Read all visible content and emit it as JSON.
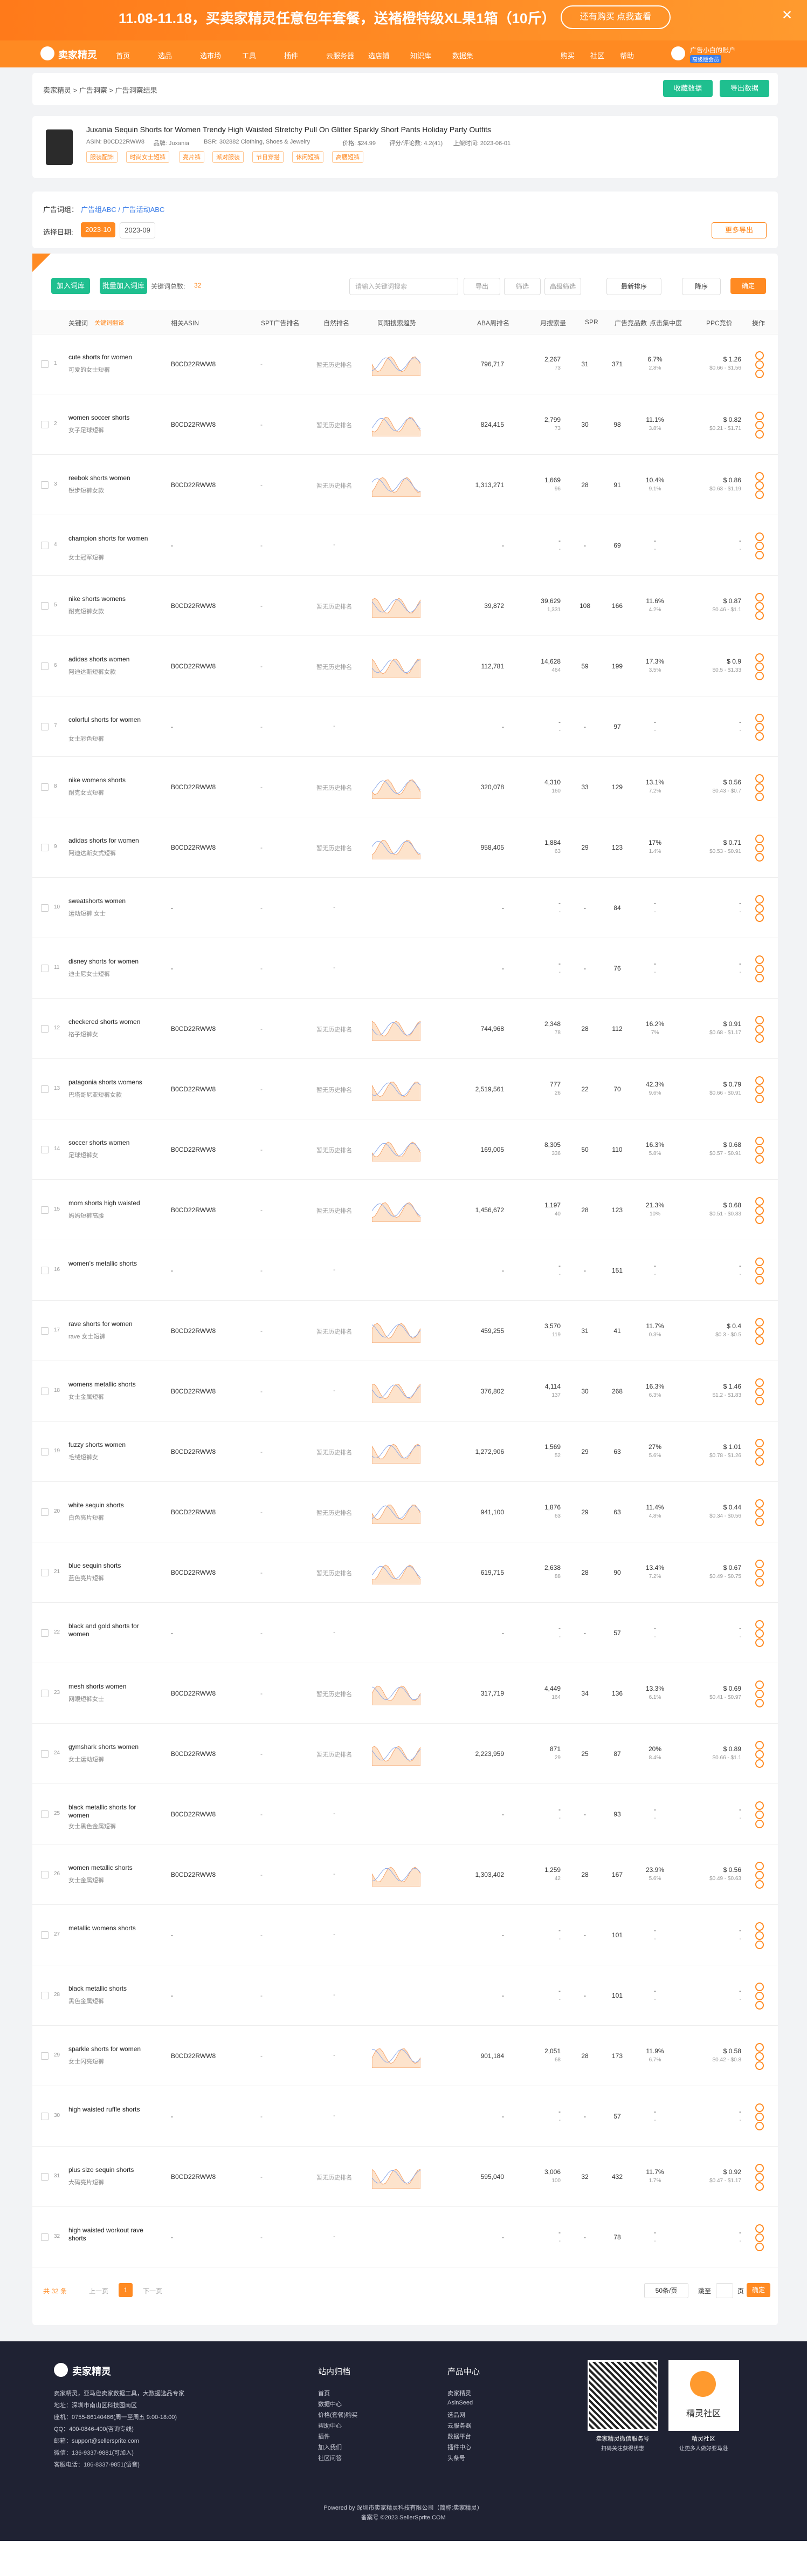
{
  "banner": {
    "text": "11.08-11.18，买卖家精灵任意包年套餐，送褚橙特级XL果1箱（10斤）",
    "button": "还有购买 点我查看"
  },
  "nav": {
    "logo": "卖家精灵",
    "items": [
      "首页",
      "选品",
      "选市场",
      "工具",
      "插件",
      "云服务器",
      "选店铺",
      "知识库",
      "数据集"
    ],
    "right": [
      "购买",
      "社区",
      "帮助"
    ],
    "user": "广告小白的账户",
    "badge": "高级版会员"
  },
  "breadcrumb": "卖家精灵 > 广告洞察 > 广告洞察结果",
  "actions": [
    "收藏数据",
    "导出数据"
  ],
  "product": {
    "title": "Juxania Sequin Shorts for Women Trendy High Waisted Stretchy Pull On Glitter Sparkly Short Pants Holiday Party Outfits",
    "meta": [
      "ASIN: B0CD22RWW8",
      "品牌: Juxania",
      "BSR: 302882 Clothing, Shoes & Jewelry",
      "价格: $24.99",
      "评分/评论数: 4.2(41)",
      "上架时间: 2023-06-01"
    ],
    "tags": [
      "服装配饰",
      "时尚女士短裤",
      "亮片裤",
      "派对服装",
      "节日穿搭",
      "休闲短裤",
      "高腰短裤"
    ]
  },
  "filter": {
    "label": "广告词组：",
    "groups": "广告组ABC / 广告活动ABC",
    "date_label": "选择日期:",
    "dates": [
      "2023-10",
      "2023-09"
    ],
    "export": "更多导出"
  },
  "toolbar": {
    "buttons": [
      "加入词库",
      "批量加入词库"
    ],
    "count_label": "关键词总数:",
    "count": 32,
    "search": "请输入关键词搜索",
    "tools": [
      "导出",
      "筛选",
      "高级筛选"
    ],
    "sort": "最新排序",
    "order": "降序",
    "confirm": "确定"
  },
  "table": {
    "headers": [
      "关键词",
      "相关ASIN",
      "SPT广告排名",
      "自然排名",
      "同期搜索趋势",
      "ABA周排名",
      "月搜索量",
      "SPR",
      "广告竞品数",
      "点击集中度",
      "PPC竞价",
      "操作"
    ],
    "translate": "关键词翻译",
    "rows": [
      [
        "1",
        "cute shorts for women",
        "可爱的女士短裤",
        "B0CD22RWW8",
        "-",
        "暂无历史排名",
        "796,717",
        "2,267",
        "73",
        "31",
        "371",
        "6.7%",
        "2.8%",
        "$ 1.26",
        "$0.66 - $1.56"
      ],
      [
        "2",
        "women soccer shorts",
        "女子足球短裤",
        "B0CD22RWW8",
        "-",
        "暂无历史排名",
        "824,415",
        "2,799",
        "73",
        "30",
        "98",
        "11.1%",
        "3.8%",
        "$ 0.82",
        "$0.21 - $1.71"
      ],
      [
        "3",
        "reebok shorts women",
        "锐步短裤女款",
        "B0CD22RWW8",
        "-",
        "暂无历史排名",
        "1,313,271",
        "1,669",
        "96",
        "28",
        "91",
        "10.4%",
        "9.1%",
        "$ 0.86",
        "$0.63 - $1.19"
      ],
      [
        "4",
        "champion shorts for women",
        "女士冠军短裤",
        "-",
        "-",
        "-",
        "-",
        "-",
        "-",
        "-",
        "69",
        "-",
        "-",
        "-",
        "-"
      ],
      [
        "5",
        "nike shorts womens",
        "耐克短裤女款",
        "B0CD22RWW8",
        "-",
        "暂无历史排名",
        "39,872",
        "39,629",
        "1,331",
        "108",
        "166",
        "11.6%",
        "4.2%",
        "$ 0.87",
        "$0.46 - $1.1"
      ],
      [
        "6",
        "adidas shorts women",
        "阿迪达斯短裤女款",
        "B0CD22RWW8",
        "-",
        "暂无历史排名",
        "112,781",
        "14,628",
        "464",
        "59",
        "199",
        "17.3%",
        "3.5%",
        "$ 0.9",
        "$0.5 - $1.33"
      ],
      [
        "7",
        "colorful shorts for women",
        "女士彩色短裤",
        "-",
        "-",
        "-",
        "-",
        "-",
        "-",
        "-",
        "97",
        "-",
        "-",
        "-",
        "-"
      ],
      [
        "8",
        "nike womens shorts",
        "耐克女式短裤",
        "B0CD22RWW8",
        "-",
        "暂无历史排名",
        "320,078",
        "4,310",
        "160",
        "33",
        "129",
        "13.1%",
        "7.2%",
        "$ 0.56",
        "$0.43 - $0.7"
      ],
      [
        "9",
        "adidas shorts for women",
        "阿迪达斯女式短裤",
        "B0CD22RWW8",
        "-",
        "暂无历史排名",
        "958,405",
        "1,884",
        "63",
        "29",
        "123",
        "17%",
        "1.4%",
        "$ 0.71",
        "$0.53 - $0.91"
      ],
      [
        "10",
        "sweatshorts women",
        "运动短裤 女士",
        "-",
        "-",
        "-",
        "-",
        "-",
        "-",
        "-",
        "84",
        "-",
        "-",
        "-",
        "-"
      ],
      [
        "11",
        "disney shorts for women",
        "迪士尼女士短裤",
        "-",
        "-",
        "-",
        "-",
        "-",
        "-",
        "-",
        "76",
        "-",
        "-",
        "-",
        "-"
      ],
      [
        "12",
        "checkered shorts women",
        "格子短裤女",
        "B0CD22RWW8",
        "-",
        "暂无历史排名",
        "744,968",
        "2,348",
        "78",
        "28",
        "112",
        "16.2%",
        "7%",
        "$ 0.91",
        "$0.68 - $1.17"
      ],
      [
        "13",
        "patagonia shorts womens",
        "巴塔哥尼亚短裤女款",
        "B0CD22RWW8",
        "-",
        "暂无历史排名",
        "2,519,561",
        "777",
        "26",
        "22",
        "70",
        "42.3%",
        "9.6%",
        "$ 0.79",
        "$0.66 - $0.91"
      ],
      [
        "14",
        "soccer shorts women",
        "足球短裤女",
        "B0CD22RWW8",
        "-",
        "暂无历史排名",
        "169,005",
        "8,305",
        "336",
        "50",
        "110",
        "16.3%",
        "5.8%",
        "$ 0.68",
        "$0.57 - $0.91"
      ],
      [
        "15",
        "mom shorts high waisted",
        "妈妈短裤高腰",
        "B0CD22RWW8",
        "-",
        "暂无历史排名",
        "1,456,672",
        "1,197",
        "40",
        "28",
        "123",
        "21.3%",
        "10%",
        "$ 0.68",
        "$0.51 - $0.83"
      ],
      [
        "16",
        "women's metallic shorts",
        null,
        "-",
        "-",
        "-",
        "-",
        "-",
        "-",
        "-",
        "151",
        "-",
        "-",
        "-",
        "-"
      ],
      [
        "17",
        "rave shorts for women",
        "rave 女士短裤",
        "B0CD22RWW8",
        "-",
        "暂无历史排名",
        "459,255",
        "3,570",
        "119",
        "31",
        "41",
        "11.7%",
        "0.3%",
        "$ 0.4",
        "$0.3 - $0.5"
      ],
      [
        "18",
        "womens metallic shorts",
        "女士金属短裤",
        "B0CD22RWW8",
        "-",
        "-",
        "376,802",
        "4,114",
        "137",
        "30",
        "268",
        "16.3%",
        "6.3%",
        "$ 1.46",
        "$1.2 - $1.83"
      ],
      [
        "19",
        "fuzzy shorts women",
        "毛绒短裤女",
        "B0CD22RWW8",
        "-",
        "暂无历史排名",
        "1,272,906",
        "1,569",
        "52",
        "29",
        "63",
        "27%",
        "5.6%",
        "$ 1.01",
        "$0.78 - $1.26"
      ],
      [
        "20",
        "white sequin shorts",
        "白色亮片短裤",
        "B0CD22RWW8",
        "-",
        "暂无历史排名",
        "941,100",
        "1,876",
        "63",
        "29",
        "63",
        "11.4%",
        "4.8%",
        "$ 0.44",
        "$0.34 - $0.56"
      ],
      [
        "21",
        "blue sequin shorts",
        "蓝色亮片短裤",
        "B0CD22RWW8",
        "-",
        "暂无历史排名",
        "619,715",
        "2,638",
        "88",
        "28",
        "90",
        "13.4%",
        "7.2%",
        "$ 0.67",
        "$0.49 - $0.75"
      ],
      [
        "22",
        "black and gold shorts for women",
        null,
        "-",
        "-",
        "-",
        "-",
        "-",
        "-",
        "-",
        "57",
        "-",
        "-",
        "-",
        "-"
      ],
      [
        "23",
        "mesh shorts women",
        "网眼短裤女士",
        "B0CD22RWW8",
        "-",
        "暂无历史排名",
        "317,719",
        "4,449",
        "164",
        "34",
        "136",
        "13.3%",
        "6.1%",
        "$ 0.69",
        "$0.41 - $0.97"
      ],
      [
        "24",
        "gymshark shorts women",
        "女士运动短裤",
        "B0CD22RWW8",
        "-",
        "暂无历史排名",
        "2,223,959",
        "871",
        "29",
        "25",
        "87",
        "20%",
        "8.4%",
        "$ 0.89",
        "$0.66 - $1.1"
      ],
      [
        "25",
        "black metallic shorts for women",
        "女士黑色金属短裤",
        "B0CD22RWW8",
        "-",
        "-",
        "-",
        "-",
        "-",
        "-",
        "93",
        "-",
        "-",
        "-",
        "-"
      ],
      [
        "26",
        "women metallic shorts",
        "女士金属短裤",
        "B0CD22RWW8",
        "-",
        "-",
        "1,303,402",
        "1,259",
        "42",
        "28",
        "167",
        "23.9%",
        "5.6%",
        "$ 0.56",
        "$0.49 - $0.63"
      ],
      [
        "27",
        "metallic womens shorts",
        null,
        "-",
        "-",
        "-",
        "-",
        "-",
        "-",
        "-",
        "101",
        "-",
        "-",
        "-",
        "-"
      ],
      [
        "28",
        "black metallic shorts",
        "黑色金属短裤",
        "-",
        "-",
        "-",
        "-",
        "-",
        "-",
        "-",
        "101",
        "-",
        "-",
        "-",
        "-"
      ],
      [
        "29",
        "sparkle shorts for women",
        "女士闪亮短裤",
        "B0CD22RWW8",
        "-",
        "-",
        "901,184",
        "2,051",
        "68",
        "28",
        "173",
        "11.9%",
        "6.7%",
        "$ 0.58",
        "$0.42 - $0.8"
      ],
      [
        "30",
        "high waisted ruffle shorts",
        null,
        "-",
        "-",
        "-",
        "-",
        "-",
        "-",
        "-",
        "57",
        "-",
        "-",
        "-",
        "-"
      ],
      [
        "31",
        "plus size sequin shorts",
        "大码亮片短裤",
        "B0CD22RWW8",
        "-",
        "暂无历史排名",
        "595,040",
        "3,006",
        "100",
        "32",
        "432",
        "11.7%",
        "1.7%",
        "$ 0.92",
        "$0.47 - $1.17"
      ],
      [
        "32",
        "high waisted workout rave shorts",
        null,
        "-",
        "-",
        "-",
        "-",
        "-",
        "-",
        "-",
        "78",
        "-",
        "-",
        "-",
        "-"
      ]
    ]
  },
  "pagination": {
    "total": "共 32 条",
    "prev": "上一页",
    "page": "1",
    "next": "下一页",
    "size": "50条/页",
    "goto": "跳至",
    "unit": "页",
    "go": "确定"
  },
  "footer": {
    "logo": "卖家精灵",
    "lines": [
      "卖家精灵，亚马逊卖家数据工具，大数据选品专家",
      "地址：深圳市南山区科技园南区",
      "座机：0755-86140466(周一至周五 9:00-18:00)",
      "QQ：400-0846-400(咨询专线)",
      "邮箱：support@sellersprite.com",
      "微信：136-9337-9881(可加入)",
      "客服电话：186-8337-9851(语音)"
    ],
    "columns": [
      {
        "title": "站内归档",
        "items": [
          "首页",
          "数据中心",
          "价格(套餐)购买",
          "帮助中心",
          "插件",
          "加入我们",
          "社区问答"
        ]
      },
      {
        "title": "产品中心",
        "items": [
          "卖家精灵",
          "AsinSeed",
          "选品网",
          "云服务器",
          "数据平台",
          "插件中心",
          "头条号"
        ]
      }
    ],
    "qr": [
      "卖家精灵微信服务号",
      "精灵社区"
    ],
    "qr_sub": [
      "扫码关注获得优惠",
      "让更多人做好亚马逊"
    ],
    "qr_icon": "精灵社区",
    "copyright": [
      "Powered by 深圳市卖家精灵科技有限公司（简称:卖家精灵）",
      "备案号 ©2023 SellerSprite.COM"
    ]
  }
}
